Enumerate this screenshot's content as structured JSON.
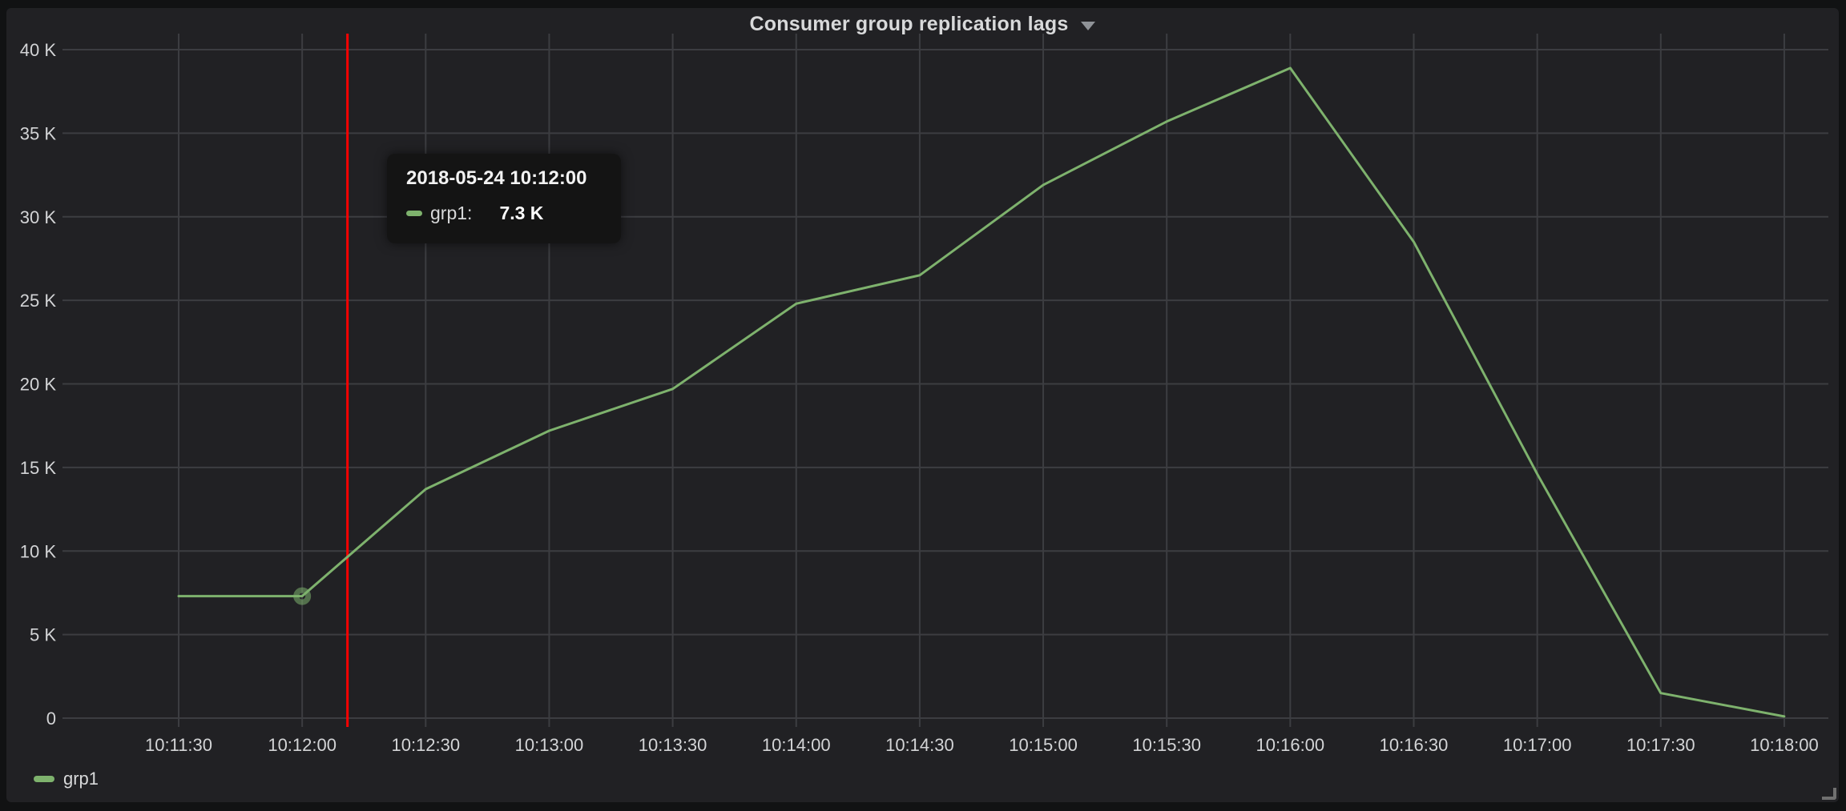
{
  "panel": {
    "title": "Consumer group replication lags"
  },
  "tooltip": {
    "date": "2018-05-24 10:12:00",
    "series_label": "grp1:",
    "value": "7.3 K"
  },
  "legend": {
    "items": [
      {
        "label": "grp1",
        "color": "#7eb26d"
      }
    ]
  },
  "colors": {
    "series_green": "#7eb26d",
    "crosshair_red": "#ff0000",
    "panel_background": "#212124",
    "page_background": "#111213",
    "tooltip_background": "#141414",
    "grid_line": "#3c3d41",
    "axis_text": "#d3d4d6"
  },
  "chart_data": {
    "type": "line",
    "title": "Consumer group replication lags",
    "xlabel": "",
    "ylabel": "",
    "grid": true,
    "legend_position": "bottom-left",
    "x_ticks": [
      "10:11:30",
      "10:12:00",
      "10:12:30",
      "10:13:00",
      "10:13:30",
      "10:14:00",
      "10:14:30",
      "10:15:00",
      "10:15:30",
      "10:16:00",
      "10:16:30",
      "10:17:00",
      "10:17:30",
      "10:18:00"
    ],
    "y_tick_labels": [
      "0",
      "5 K",
      "10 K",
      "15 K",
      "20 K",
      "25 K",
      "30 K",
      "35 K",
      "40 K"
    ],
    "y_tick_values": [
      0,
      5000,
      10000,
      15000,
      20000,
      25000,
      30000,
      35000,
      40000
    ],
    "ylim": [
      0,
      41000
    ],
    "series": [
      {
        "name": "grp1",
        "color": "#7eb26d",
        "x": [
          "10:11:30",
          "10:12:00",
          "10:12:30",
          "10:13:00",
          "10:13:30",
          "10:14:00",
          "10:14:30",
          "10:15:00",
          "10:15:30",
          "10:16:00",
          "10:16:30",
          "10:17:00",
          "10:17:30",
          "10:18:00"
        ],
        "values": [
          7300,
          7300,
          13700,
          17200,
          19700,
          24800,
          26500,
          31900,
          35700,
          38900,
          28500,
          14600,
          1500,
          100
        ]
      }
    ],
    "crosshair": {
      "color": "#ff0000",
      "x": "10:12:11"
    },
    "highlight": {
      "series": "grp1",
      "x": "10:12:00",
      "value": 7300
    }
  }
}
